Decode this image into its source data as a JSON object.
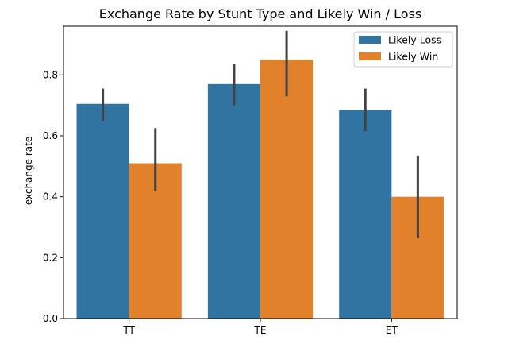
{
  "chart_data": {
    "type": "bar",
    "title": "Exchange Rate by Stunt Type and Likely Win / Loss",
    "xlabel": "",
    "ylabel": "exchange rate",
    "categories": [
      "TT",
      "TE",
      "ET"
    ],
    "ylim": [
      0,
      0.96
    ],
    "yticks": [
      0.0,
      0.2,
      0.4,
      0.6,
      0.8
    ],
    "ytick_labels": [
      "0.0",
      "0.2",
      "0.4",
      "0.6",
      "0.8"
    ],
    "legend_position": "top-right",
    "series": [
      {
        "name": "Likely Loss",
        "color": "#3274a1",
        "values": [
          0.705,
          0.77,
          0.685
        ],
        "ci_low": [
          0.65,
          0.7,
          0.615
        ],
        "ci_high": [
          0.755,
          0.835,
          0.755
        ]
      },
      {
        "name": "Likely Win",
        "color": "#e1812c",
        "values": [
          0.51,
          0.85,
          0.4
        ],
        "ci_low": [
          0.42,
          0.73,
          0.265
        ],
        "ci_high": [
          0.625,
          0.945,
          0.535
        ]
      }
    ],
    "errorbar_color": "#424242",
    "grid": false
  }
}
